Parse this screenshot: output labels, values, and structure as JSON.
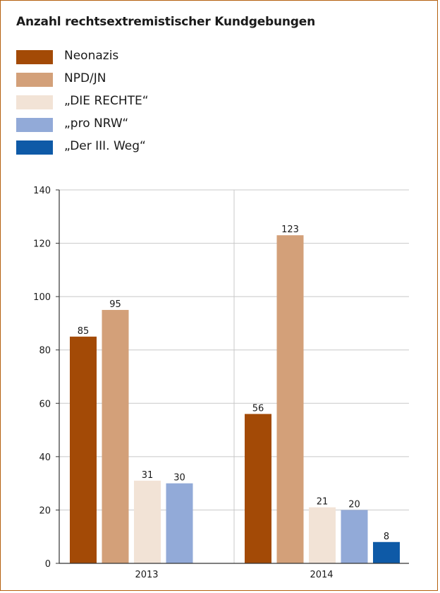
{
  "title": "Anzahl rechtsextremistischer Kundgebungen",
  "legend": [
    {
      "label": "Neonazis",
      "color": "#a34a06"
    },
    {
      "label": "NPD/JN",
      "color": "#d3a079"
    },
    {
      "label": "„DIE RECHTE“",
      "color": "#f2e3d6"
    },
    {
      "label": "„pro NRW“",
      "color": "#92aad8"
    },
    {
      "label": "„Der III. Weg“",
      "color": "#0e5aa7"
    }
  ],
  "chart_data": {
    "type": "bar",
    "categories": [
      "2013",
      "2014"
    ],
    "series": [
      {
        "name": "Neonazis",
        "color": "#a34a06",
        "values": [
          85,
          56
        ]
      },
      {
        "name": "NPD/JN",
        "color": "#d3a079",
        "values": [
          95,
          123
        ]
      },
      {
        "name": "„DIE RECHTE“",
        "color": "#f2e3d6",
        "values": [
          31,
          21
        ]
      },
      {
        "name": "„pro NRW“",
        "color": "#92aad8",
        "values": [
          30,
          20
        ]
      },
      {
        "name": "„Der III. Weg“",
        "color": "#0e5aa7",
        "values": [
          null,
          8
        ]
      }
    ],
    "ylim": [
      0,
      140
    ],
    "yticks": [
      "0",
      "20",
      "40",
      "60",
      "80",
      "100",
      "120",
      "140"
    ],
    "grid": true,
    "title": "Anzahl rechtsextremistischer Kundgebungen",
    "xlabel": "",
    "ylabel": ""
  }
}
